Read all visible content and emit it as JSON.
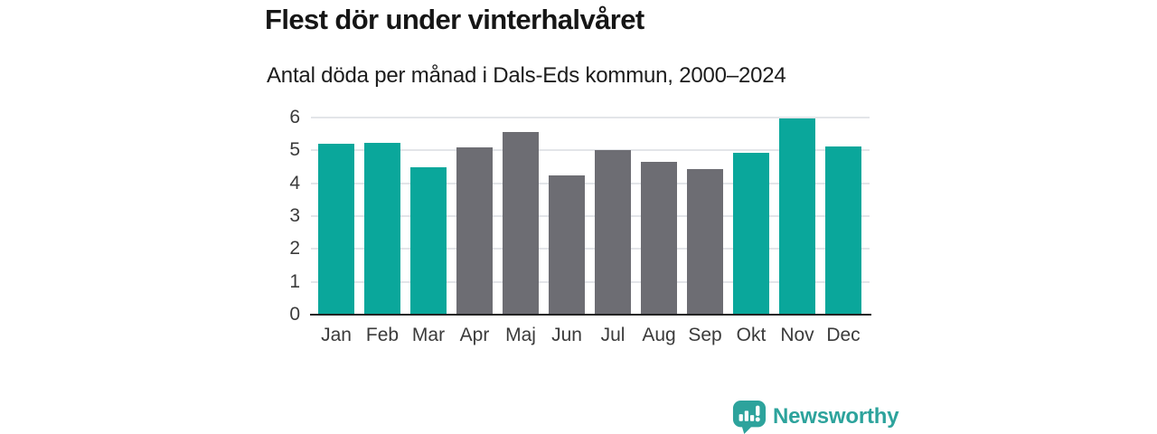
{
  "header": {
    "title": "Flest dör under vinterhalvåret",
    "subtitle": "Antal döda per månad i Dals-Eds kommun, 2000–2024"
  },
  "colors": {
    "winter_bar": "#0aa79b",
    "summer_bar": "#6d6d73",
    "gridline": "#e3e5e9",
    "axis_line": "#232323",
    "title_text": "#161616",
    "tick_label_text": "#3b3b3b",
    "logo_teal": "#2da39c"
  },
  "chart_data": {
    "type": "bar",
    "title": "Flest dör under vinterhalvåret",
    "subtitle": "Antal döda per månad i Dals-Eds kommun, 2000–2024",
    "xlabel": "",
    "ylabel": "",
    "categories": [
      "Jan",
      "Feb",
      "Mar",
      "Apr",
      "Maj",
      "Jun",
      "Jul",
      "Aug",
      "Sep",
      "Okt",
      "Nov",
      "Dec"
    ],
    "values": [
      5.2,
      5.24,
      4.48,
      5.08,
      5.56,
      4.24,
      5.0,
      4.64,
      4.44,
      4.92,
      5.96,
      5.12
    ],
    "color_keys": [
      "winter",
      "winter",
      "winter",
      "summer",
      "summer",
      "summer",
      "summer",
      "summer",
      "summer",
      "winter",
      "winter",
      "winter"
    ],
    "bar_palette": {
      "winter": "#0aa79b",
      "summer": "#6d6d73"
    },
    "ylim": [
      0,
      6
    ],
    "yticks": [
      0,
      1,
      2,
      3,
      4,
      5,
      6
    ],
    "grid": true,
    "legend": false
  },
  "branding": {
    "logo_text": "Newsworthy",
    "logo_icon": "bar-chart-speech-bubble-icon"
  }
}
